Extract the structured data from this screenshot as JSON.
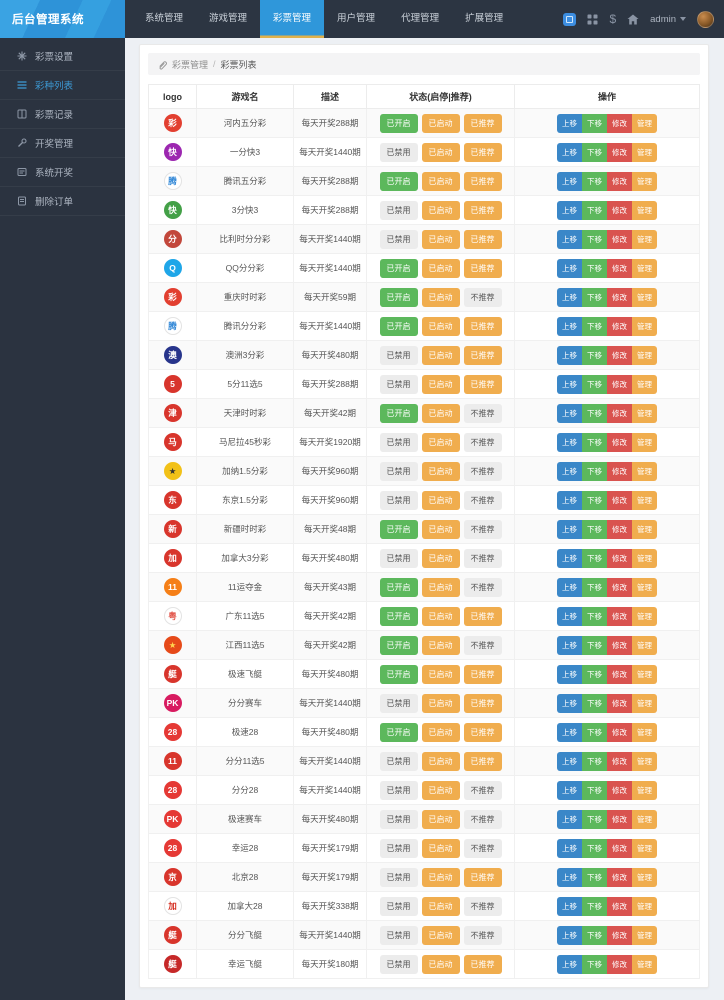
{
  "app": {
    "title": "后台管理系统"
  },
  "topnav": {
    "items": [
      {
        "label": "系统管理"
      },
      {
        "label": "游戏管理"
      },
      {
        "label": "彩票管理",
        "active": true
      },
      {
        "label": "用户管理"
      },
      {
        "label": "代理管理"
      },
      {
        "label": "扩展管理"
      }
    ],
    "icons": [
      "ci-badge-icon",
      "apps-grid-icon",
      "dollar-icon",
      "home-icon"
    ],
    "dollar_glyph": "$",
    "user": "admin"
  },
  "sidebar": {
    "items": [
      {
        "label": "彩票设置",
        "icon": "gear-icon"
      },
      {
        "label": "彩种列表",
        "icon": "list-icon",
        "active": true
      },
      {
        "label": "彩票记录",
        "icon": "record-book-icon"
      },
      {
        "label": "开奖管理",
        "icon": "wrench-icon"
      },
      {
        "label": "系统开奖",
        "icon": "panel-icon"
      },
      {
        "label": "删除订单",
        "icon": "delete-book-icon"
      }
    ]
  },
  "breadcrumb": {
    "icon": "paperclip-icon",
    "section": "彩票管理",
    "separator": "/",
    "page": "彩票列表"
  },
  "colors": {
    "accent_blue": "#2f97da",
    "tab_underline": "#dfb14c",
    "status_on_green": "#5cb85c",
    "status_warn_orange": "#f0ad4e",
    "status_off_gray": "#ececec",
    "btn_up_blue": "#3a87c8",
    "btn_down_green": "#5cb85c",
    "btn_edit_red": "#d9534f",
    "btn_manage_orange": "#f0ad4e",
    "topbar_bg": "#2c3542",
    "sidebar_bg": "#2b3340",
    "page_bg": "#edf0f4"
  },
  "table": {
    "headers": [
      "logo",
      "游戏名",
      "描述",
      "状态(启停|推荐)",
      "操作"
    ],
    "action_labels": [
      "上移",
      "下移",
      "修改",
      "管理"
    ],
    "rows": [
      {
        "name": "河内五分彩",
        "desc": "每天开奖288期",
        "status": [
          "已开启",
          "已启动",
          "已推荐"
        ],
        "logo": {
          "bg": "#e23f30",
          "fg": "#ffffff",
          "glyph": "彩"
        }
      },
      {
        "name": "一分快3",
        "desc": "每天开奖1440期",
        "status": [
          "已禁用",
          "已启动",
          "已推荐"
        ],
        "logo": {
          "bg": "#9c27b0",
          "fg": "#ffffff",
          "glyph": "快"
        }
      },
      {
        "name": "腾讯五分彩",
        "desc": "每天开奖288期",
        "status": [
          "已开启",
          "已启动",
          "已推荐"
        ],
        "logo": {
          "bg": "#ffffff",
          "fg": "#2f86d6",
          "glyph": "腾"
        }
      },
      {
        "name": "3分快3",
        "desc": "每天开奖288期",
        "status": [
          "已禁用",
          "已启动",
          "已推荐"
        ],
        "logo": {
          "bg": "#43a047",
          "fg": "#ffffff",
          "glyph": "快"
        }
      },
      {
        "name": "比利时分分彩",
        "desc": "每天开奖1440期",
        "status": [
          "已禁用",
          "已启动",
          "已推荐"
        ],
        "logo": {
          "bg": "#c2473b",
          "fg": "#ffffff",
          "glyph": "分"
        }
      },
      {
        "name": "QQ分分彩",
        "desc": "每天开奖1440期",
        "status": [
          "已开启",
          "已启动",
          "已推荐"
        ],
        "logo": {
          "bg": "#1fa6e8",
          "fg": "#ffffff",
          "glyph": "Q"
        }
      },
      {
        "name": "重庆时时彩",
        "desc": "每天开奖59期",
        "status": [
          "已开启",
          "已启动",
          "不推荐"
        ],
        "logo": {
          "bg": "#e23f30",
          "fg": "#ffffff",
          "glyph": "彩"
        }
      },
      {
        "name": "腾讯分分彩",
        "desc": "每天开奖1440期",
        "status": [
          "已开启",
          "已启动",
          "已推荐"
        ],
        "logo": {
          "bg": "#ffffff",
          "fg": "#2f86d6",
          "glyph": "腾"
        }
      },
      {
        "name": "澳洲3分彩",
        "desc": "每天开奖480期",
        "status": [
          "已禁用",
          "已启动",
          "已推荐"
        ],
        "logo": {
          "bg": "#27348b",
          "fg": "#ffffff",
          "glyph": "澳"
        }
      },
      {
        "name": "5分11选5",
        "desc": "每天开奖288期",
        "status": [
          "已禁用",
          "已启动",
          "已推荐"
        ],
        "logo": {
          "bg": "#d8352c",
          "fg": "#ffffff",
          "glyph": "5"
        }
      },
      {
        "name": "天津时时彩",
        "desc": "每天开奖42期",
        "status": [
          "已开启",
          "已启动",
          "不推荐"
        ],
        "logo": {
          "bg": "#d8352c",
          "fg": "#ffffff",
          "glyph": "津"
        }
      },
      {
        "name": "马尼拉45秒彩",
        "desc": "每天开奖1920期",
        "status": [
          "已禁用",
          "已启动",
          "不推荐"
        ],
        "logo": {
          "bg": "#d8352c",
          "fg": "#ffffff",
          "glyph": "马"
        }
      },
      {
        "name": "加纳1.5分彩",
        "desc": "每天开奖960期",
        "status": [
          "已禁用",
          "已启动",
          "不推荐"
        ],
        "logo": {
          "bg": "#f2c118",
          "fg": "#333333",
          "glyph": "★"
        }
      },
      {
        "name": "东京1.5分彩",
        "desc": "每天开奖960期",
        "status": [
          "已禁用",
          "已启动",
          "不推荐"
        ],
        "logo": {
          "bg": "#d8352c",
          "fg": "#ffffff",
          "glyph": "东"
        }
      },
      {
        "name": "新疆时时彩",
        "desc": "每天开奖48期",
        "status": [
          "已开启",
          "已启动",
          "不推荐"
        ],
        "logo": {
          "bg": "#d8352c",
          "fg": "#ffffff",
          "glyph": "新"
        }
      },
      {
        "name": "加拿大3分彩",
        "desc": "每天开奖480期",
        "status": [
          "已禁用",
          "已启动",
          "不推荐"
        ],
        "logo": {
          "bg": "#d8352c",
          "fg": "#ffffff",
          "glyph": "加"
        }
      },
      {
        "name": "11运夺金",
        "desc": "每天开奖43期",
        "status": [
          "已开启",
          "已启动",
          "不推荐"
        ],
        "logo": {
          "bg": "#f57f17",
          "fg": "#ffffff",
          "glyph": "11"
        }
      },
      {
        "name": "广东11选5",
        "desc": "每天开奖42期",
        "status": [
          "已开启",
          "已启动",
          "已推荐"
        ],
        "logo": {
          "bg": "#ffffff",
          "fg": "#e2574c",
          "glyph": "粤"
        }
      },
      {
        "name": "江西11选5",
        "desc": "每天开奖42期",
        "status": [
          "已开启",
          "已启动",
          "不推荐"
        ],
        "logo": {
          "bg": "#e64a19",
          "fg": "#ffd54f",
          "glyph": "★"
        }
      },
      {
        "name": "极速飞艇",
        "desc": "每天开奖480期",
        "status": [
          "已开启",
          "已启动",
          "已推荐"
        ],
        "logo": {
          "bg": "#d8352c",
          "fg": "#ffffff",
          "glyph": "艇"
        }
      },
      {
        "name": "分分赛车",
        "desc": "每天开奖1440期",
        "status": [
          "已禁用",
          "已启动",
          "已推荐"
        ],
        "logo": {
          "bg": "#d81b60",
          "fg": "#ffffff",
          "glyph": "PK"
        }
      },
      {
        "name": "极速28",
        "desc": "每天开奖480期",
        "status": [
          "已开启",
          "已启动",
          "已推荐"
        ],
        "logo": {
          "bg": "#e53935",
          "fg": "#ffffff",
          "glyph": "28"
        }
      },
      {
        "name": "分分11选5",
        "desc": "每天开奖1440期",
        "status": [
          "已禁用",
          "已启动",
          "已推荐"
        ],
        "logo": {
          "bg": "#d8352c",
          "fg": "#ffffff",
          "glyph": "11"
        }
      },
      {
        "name": "分分28",
        "desc": "每天开奖1440期",
        "status": [
          "已禁用",
          "已启动",
          "不推荐"
        ],
        "logo": {
          "bg": "#e53935",
          "fg": "#ffffff",
          "glyph": "28"
        }
      },
      {
        "name": "极速赛车",
        "desc": "每天开奖480期",
        "status": [
          "已禁用",
          "已启动",
          "不推荐"
        ],
        "logo": {
          "bg": "#e53935",
          "fg": "#ffffff",
          "glyph": "PK"
        }
      },
      {
        "name": "幸运28",
        "desc": "每天开奖179期",
        "status": [
          "已禁用",
          "已启动",
          "不推荐"
        ],
        "logo": {
          "bg": "#e53935",
          "fg": "#ffffff",
          "glyph": "28"
        }
      },
      {
        "name": "北京28",
        "desc": "每天开奖179期",
        "status": [
          "已禁用",
          "已启动",
          "已推荐"
        ],
        "logo": {
          "bg": "#d8352c",
          "fg": "#ffffff",
          "glyph": "京"
        }
      },
      {
        "name": "加拿大28",
        "desc": "每天开奖338期",
        "status": [
          "已禁用",
          "已启动",
          "不推荐"
        ],
        "logo": {
          "bg": "#ffffff",
          "fg": "#d52b1e",
          "glyph": "加"
        }
      },
      {
        "name": "分分飞艇",
        "desc": "每天开奖1440期",
        "status": [
          "已禁用",
          "已启动",
          "不推荐"
        ],
        "logo": {
          "bg": "#d8352c",
          "fg": "#ffffff",
          "glyph": "艇"
        }
      },
      {
        "name": "幸运飞艇",
        "desc": "每天开奖180期",
        "status": [
          "已禁用",
          "已启动",
          "已推荐"
        ],
        "logo": {
          "bg": "#c62828",
          "fg": "#ffffff",
          "glyph": "艇"
        }
      }
    ]
  }
}
